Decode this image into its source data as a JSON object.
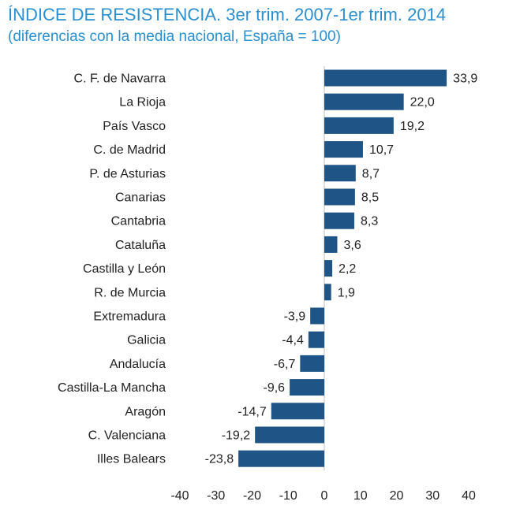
{
  "chart_data": {
    "type": "bar",
    "orientation": "horizontal",
    "title": "ÍNDICE DE RESISTENCIA. 3er trim. 2007-1er trim. 2014",
    "subtitle": "(diferencias con la media nacional, España = 100)",
    "categories": [
      "C. F. de Navarra",
      "La Rioja",
      "País Vasco",
      "C. de Madrid",
      "P. de Asturias",
      "Canarias",
      "Cantabria",
      "Cataluña",
      "Castilla y León",
      "R. de Murcia",
      "Extremadura",
      "Galicia",
      "Andalucía",
      "Castilla-La Mancha",
      "Aragón",
      "C. Valenciana",
      "Illes Balears"
    ],
    "values": [
      33.9,
      22.0,
      19.2,
      10.7,
      8.7,
      8.5,
      8.3,
      3.6,
      2.2,
      1.9,
      -3.9,
      -4.4,
      -6.7,
      -9.6,
      -14.7,
      -19.2,
      -23.8
    ],
    "value_labels": [
      "33,9",
      "22,0",
      "19,2",
      "10,7",
      "8,7",
      "8,5",
      "8,3",
      "3,6",
      "2,2",
      "1,9",
      "-3,9",
      "-4,4",
      "-6,7",
      "-9,6",
      "-14,7",
      "-19,2",
      "-23,8"
    ],
    "xlim": [
      -40,
      40
    ],
    "ticks": [
      -40,
      -30,
      -20,
      -10,
      0,
      10,
      20,
      30,
      40
    ],
    "tick_labels": [
      "-40",
      "-30",
      "-20",
      "-10",
      "0",
      "10",
      "20",
      "30",
      "40"
    ],
    "bar_color": "#1f5586",
    "grid": false,
    "xlabel": "",
    "ylabel": ""
  }
}
